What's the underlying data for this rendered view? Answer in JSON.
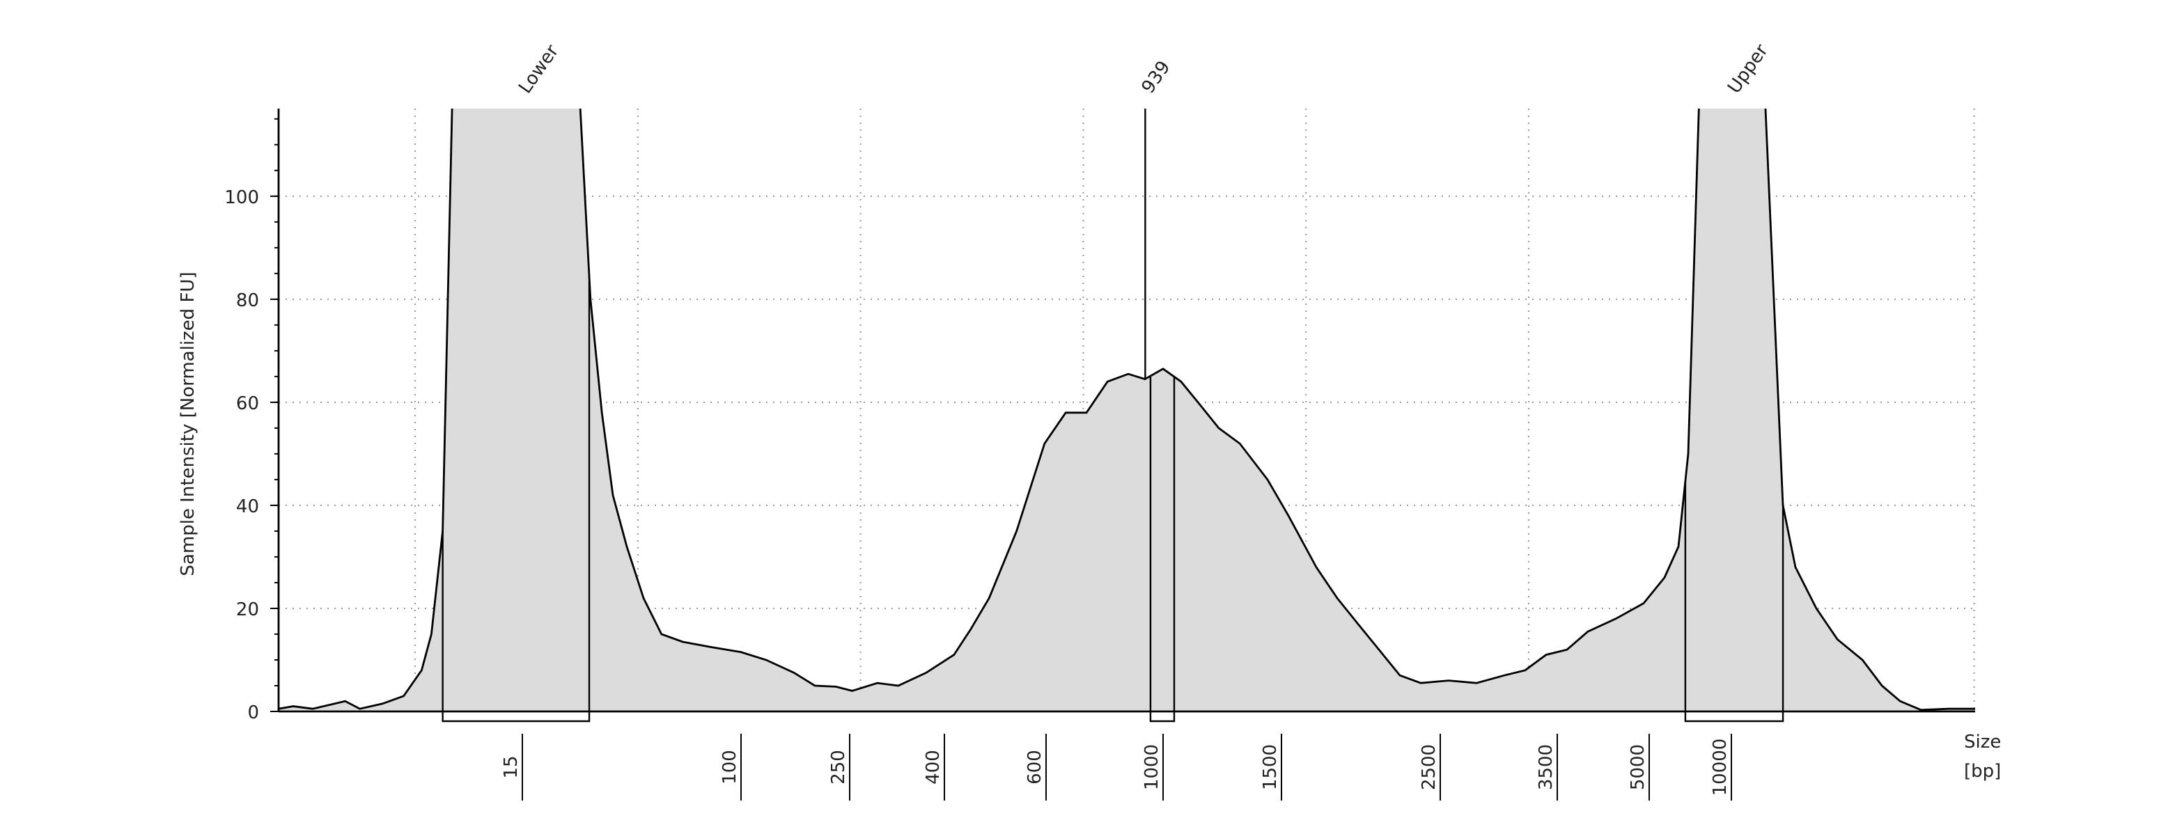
{
  "chart_data": {
    "type": "area",
    "y_label": "Sample Intensity [Normalized FU]",
    "x_label": [
      "Size",
      "[bp]"
    ],
    "x": [
      0,
      0.9,
      2.1,
      4.1,
      5.0,
      6.4,
      7.7,
      8.8,
      9.4,
      10.1,
      10.7,
      14.7,
      37.2,
      41.5,
      45.9,
      50.2,
      55.6,
      62.1,
      69.1,
      77.3,
      88.1,
      100,
      134.6,
      173,
      202,
      231,
      254,
      294,
      327,
      371,
      419,
      452,
      488,
      542,
      597,
      667,
      738,
      810,
      881,
      938,
      1000,
      1076,
      1147,
      1235,
      1324,
      1441,
      1544,
      1719,
      1851,
      1982,
      2114,
      2246,
      2377,
      2571,
      2809,
      3048,
      3226,
      3405,
      3659,
      4000,
      4455,
      4909,
      5932,
      6779,
      7372,
      8050,
      10029,
      10686,
      11058,
      11315,
      11744,
      12173,
      12688,
      13088,
      13460,
      13889,
      14461,
      15000
    ],
    "values": [
      0.5,
      1,
      0.5,
      2,
      0.5,
      1.5,
      3,
      8,
      15,
      35,
      120,
      160,
      120,
      80,
      58,
      42,
      32,
      22,
      15,
      13.5,
      12.5,
      11.5,
      10,
      7.5,
      5,
      4.8,
      4,
      5.5,
      5,
      7.5,
      11,
      16,
      22,
      35,
      52,
      58,
      58,
      64,
      65.5,
      64.5,
      66.5,
      64,
      60,
      55,
      52,
      45,
      38,
      28,
      22,
      17,
      12,
      7,
      5.5,
      6,
      5.5,
      7,
      8,
      11,
      12,
      15.5,
      18,
      21,
      26,
      32,
      50,
      120,
      150,
      120,
      40,
      28,
      20,
      14,
      10,
      5,
      2,
      0.3,
      0.5,
      0.5
    ],
    "color": "#dcdcdc",
    "xlim": [
      0,
      15000
    ],
    "xticks": [
      15,
      100,
      250,
      400,
      600,
      1000,
      1500,
      2500,
      3500,
      5000,
      10000
    ],
    "ylim": [
      0,
      117
    ],
    "yticks": [
      0,
      20,
      40,
      60,
      80,
      100
    ],
    "grid": true,
    "peaks": [
      {
        "label": "Lower",
        "size": 15,
        "start": 10.1,
        "end": 41.0
      },
      {
        "label": "939",
        "size": 939,
        "start": 957,
        "end": 1047
      },
      {
        "label": "Upper",
        "size": 10000,
        "start": 7200,
        "end": 11058
      }
    ]
  }
}
